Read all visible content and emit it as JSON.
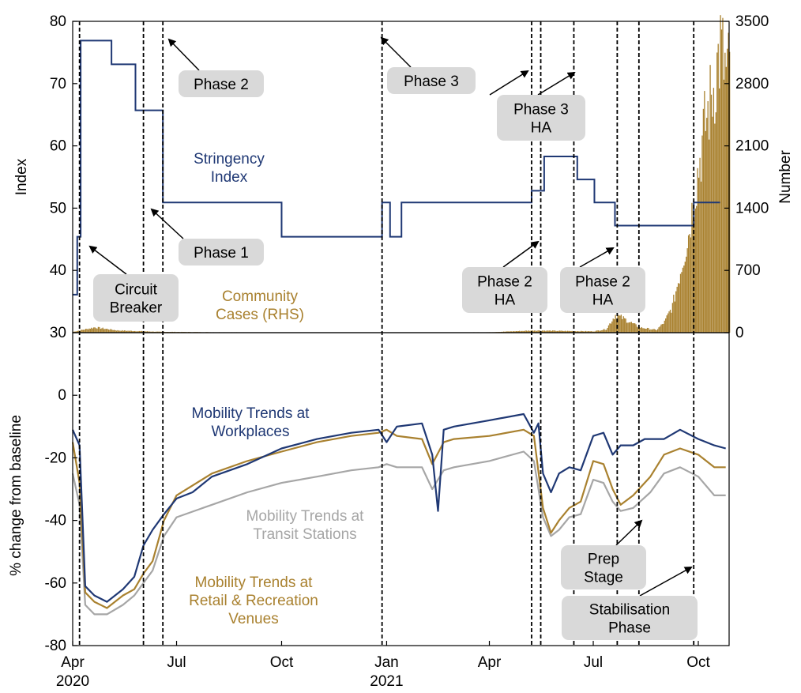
{
  "chart_data": [
    {
      "id": "top",
      "type": "line+bar",
      "ylabel": "Index",
      "y2label": "Number",
      "ylim": [
        30,
        80
      ],
      "yticks": [
        30,
        40,
        50,
        60,
        70,
        80
      ],
      "y2lim": [
        0,
        3500
      ],
      "y2ticks": [
        0,
        700,
        1400,
        2100,
        2800,
        3500
      ],
      "series": [
        {
          "name": "Stringency Index",
          "color": "#1f3874",
          "x": [
            "2020-04-01",
            "2020-04-05",
            "2020-04-07",
            "2020-04-08",
            "2020-05-05",
            "2020-05-19",
            "2020-05-26",
            "2020-06-02",
            "2020-06-19",
            "2020-10-01",
            "2020-12-28",
            "2021-01-04",
            "2021-01-14",
            "2021-05-08",
            "2021-05-15",
            "2021-05-19",
            "2021-06-17",
            "2021-06-25",
            "2021-07-02",
            "2021-07-20",
            "2021-08-10",
            "2021-09-27",
            "2021-10-20"
          ],
          "values": [
            36.1,
            45.4,
            45.4,
            76.9,
            73.1,
            73.1,
            65.7,
            65.7,
            50.9,
            45.4,
            50.9,
            45.4,
            50.9,
            52.8,
            52.8,
            58.3,
            54.6,
            54.6,
            50.9,
            47.2,
            47.2,
            50.9,
            50.9
          ]
        },
        {
          "name": "Community Cases (RHS)",
          "color": "#a9812f",
          "axis": "right",
          "x": [
            "2020-04-01",
            "2020-04-20",
            "2020-05-10",
            "2020-06-15",
            "2020-08-01",
            "2020-10-01",
            "2020-12-01",
            "2021-02-01",
            "2021-04-01",
            "2021-05-10",
            "2021-06-01",
            "2021-07-01",
            "2021-07-12",
            "2021-07-20",
            "2021-07-27",
            "2021-08-10",
            "2021-08-25",
            "2021-09-01",
            "2021-09-08",
            "2021-09-15",
            "2021-09-22",
            "2021-09-29",
            "2021-10-06",
            "2021-10-13",
            "2021-10-20",
            "2021-10-25"
          ],
          "values": [
            10,
            60,
            25,
            10,
            5,
            3,
            2,
            2,
            5,
            25,
            20,
            15,
            40,
            200,
            160,
            60,
            30,
            120,
            300,
            700,
            1100,
            1700,
            2300,
            2700,
            3200,
            2900
          ]
        }
      ],
      "annotations": [
        {
          "id": "circuit-breaker",
          "lines": [
            "Circuit",
            "Breaker"
          ]
        },
        {
          "id": "phase-1",
          "lines": [
            "Phase 1"
          ]
        },
        {
          "id": "phase-2",
          "lines": [
            "Phase 2"
          ]
        },
        {
          "id": "phase-3",
          "lines": [
            "Phase 3"
          ]
        },
        {
          "id": "phase-3-ha",
          "lines": [
            "Phase 3",
            "HA"
          ]
        },
        {
          "id": "phase-2-ha-a",
          "lines": [
            "Phase 2",
            "HA"
          ]
        },
        {
          "id": "phase-2-ha-b",
          "lines": [
            "Phase 2",
            "HA"
          ]
        }
      ],
      "series_labels": [
        {
          "id": "stringency",
          "lines": [
            "Stringency",
            "Index"
          ],
          "color": "#1f3874"
        },
        {
          "id": "cases",
          "lines": [
            "Community",
            "Cases (RHS)"
          ],
          "color": "#a9812f"
        }
      ]
    },
    {
      "id": "bottom",
      "type": "line",
      "ylabel": "% change from baseline",
      "ylim": [
        -80,
        20
      ],
      "yticks": [
        -80,
        -60,
        -40,
        -20,
        0
      ],
      "series": [
        {
          "name": "Mobility Trends at Workplaces",
          "color": "#1f3874",
          "x": [
            "2020-04-01",
            "2020-04-07",
            "2020-04-12",
            "2020-04-20",
            "2020-05-01",
            "2020-05-15",
            "2020-05-25",
            "2020-06-02",
            "2020-06-10",
            "2020-06-20",
            "2020-07-01",
            "2020-07-15",
            "2020-08-01",
            "2020-09-01",
            "2020-10-01",
            "2020-11-01",
            "2020-12-01",
            "2020-12-25",
            "2021-01-01",
            "2021-01-10",
            "2021-02-01",
            "2021-02-10",
            "2021-02-15",
            "2021-02-20",
            "2021-03-01",
            "2021-04-01",
            "2021-05-01",
            "2021-05-10",
            "2021-05-14",
            "2021-05-18",
            "2021-05-25",
            "2021-06-01",
            "2021-06-10",
            "2021-06-20",
            "2021-07-01",
            "2021-07-10",
            "2021-07-18",
            "2021-07-25",
            "2021-08-05",
            "2021-08-15",
            "2021-09-01",
            "2021-09-15",
            "2021-10-01",
            "2021-10-15",
            "2021-10-25"
          ],
          "values": [
            -11,
            -16,
            -61,
            -64,
            -66,
            -62,
            -58,
            -48,
            -43,
            -38,
            -33,
            -31,
            -26,
            -22,
            -17,
            -14,
            -12,
            -11,
            -15,
            -10,
            -9,
            -19,
            -37,
            -11,
            -10,
            -8,
            -6,
            -12,
            -9,
            -25,
            -31,
            -25,
            -23,
            -24,
            -13,
            -12,
            -19,
            -16,
            -16,
            -14,
            -14,
            -11,
            -14,
            -16,
            -17
          ]
        },
        {
          "name": "Mobility Trends at Retail & Recreation Venues",
          "color": "#a9812f",
          "x": [
            "2020-04-01",
            "2020-04-07",
            "2020-04-12",
            "2020-04-20",
            "2020-05-01",
            "2020-05-15",
            "2020-05-25",
            "2020-06-02",
            "2020-06-10",
            "2020-06-20",
            "2020-07-01",
            "2020-08-01",
            "2020-09-01",
            "2020-10-01",
            "2020-11-01",
            "2020-12-01",
            "2020-12-25",
            "2021-01-01",
            "2021-01-10",
            "2021-02-01",
            "2021-02-10",
            "2021-02-20",
            "2021-03-01",
            "2021-04-01",
            "2021-05-01",
            "2021-05-10",
            "2021-05-18",
            "2021-05-25",
            "2021-06-01",
            "2021-06-10",
            "2021-06-20",
            "2021-07-01",
            "2021-07-10",
            "2021-07-18",
            "2021-07-25",
            "2021-08-05",
            "2021-08-20",
            "2021-09-01",
            "2021-09-15",
            "2021-10-01",
            "2021-10-15",
            "2021-10-25"
          ],
          "values": [
            -15,
            -28,
            -63,
            -66,
            -68,
            -64,
            -62,
            -57,
            -53,
            -40,
            -32,
            -25,
            -21,
            -18,
            -15,
            -13,
            -12,
            -11,
            -13,
            -14,
            -22,
            -15,
            -14,
            -13,
            -11,
            -13,
            -36,
            -44,
            -40,
            -36,
            -34,
            -21,
            -22,
            -30,
            -35,
            -32,
            -26,
            -19,
            -17,
            -19,
            -23,
            -23
          ]
        },
        {
          "name": "Mobility Trends at Transit Stations",
          "color": "#a6a6a6",
          "x": [
            "2020-04-01",
            "2020-04-07",
            "2020-04-12",
            "2020-04-20",
            "2020-05-01",
            "2020-05-15",
            "2020-05-25",
            "2020-06-02",
            "2020-06-10",
            "2020-06-20",
            "2020-07-01",
            "2020-08-01",
            "2020-09-01",
            "2020-10-01",
            "2020-11-01",
            "2020-12-01",
            "2020-12-25",
            "2021-01-01",
            "2021-01-10",
            "2021-02-01",
            "2021-02-10",
            "2021-02-20",
            "2021-03-01",
            "2021-04-01",
            "2021-05-01",
            "2021-05-10",
            "2021-05-18",
            "2021-05-25",
            "2021-06-01",
            "2021-06-10",
            "2021-06-20",
            "2021-07-01",
            "2021-07-10",
            "2021-07-18",
            "2021-07-25",
            "2021-08-05",
            "2021-08-20",
            "2021-09-01",
            "2021-09-15",
            "2021-10-01",
            "2021-10-15",
            "2021-10-25"
          ],
          "values": [
            -25,
            -35,
            -67,
            -70,
            -70,
            -67,
            -64,
            -60,
            -56,
            -45,
            -39,
            -35,
            -31,
            -28,
            -26,
            -24,
            -23,
            -22,
            -23,
            -23,
            -30,
            -24,
            -23,
            -21,
            -18,
            -21,
            -39,
            -45,
            -43,
            -39,
            -38,
            -27,
            -28,
            -34,
            -37,
            -36,
            -31,
            -25,
            -23,
            -26,
            -32,
            -32
          ]
        }
      ],
      "annotations": [
        {
          "id": "prep-stage",
          "lines": [
            "Prep",
            "Stage"
          ]
        },
        {
          "id": "stabilisation-phase",
          "lines": [
            "Stabilisation",
            "Phase"
          ]
        }
      ],
      "series_labels": [
        {
          "id": "workplaces",
          "lines": [
            "Mobility Trends at",
            "Workplaces"
          ],
          "color": "#1f3874"
        },
        {
          "id": "transit",
          "lines": [
            "Mobility Trends at",
            "Transit Stations"
          ],
          "color": "#a6a6a6"
        },
        {
          "id": "retail",
          "lines": [
            "Mobility Trends at",
            "Retail & Recreation",
            "Venues"
          ],
          "color": "#a9812f"
        }
      ]
    }
  ],
  "x_axis": {
    "ticks": [
      {
        "date": "2020-04-01",
        "label": "Apr",
        "year": "2020"
      },
      {
        "date": "2020-07-01",
        "label": "Jul",
        "year": ""
      },
      {
        "date": "2020-10-01",
        "label": "Oct",
        "year": ""
      },
      {
        "date": "2021-01-01",
        "label": "Jan",
        "year": "2021"
      },
      {
        "date": "2021-04-01",
        "label": "Apr",
        "year": ""
      },
      {
        "date": "2021-07-01",
        "label": "Jul",
        "year": ""
      },
      {
        "date": "2021-10-01",
        "label": "Oct",
        "year": ""
      }
    ]
  },
  "phase_dates": [
    "2020-04-07",
    "2020-06-02",
    "2020-06-19",
    "2020-12-28",
    "2021-05-08",
    "2021-05-16",
    "2021-06-14",
    "2021-07-22",
    "2021-08-10",
    "2021-09-27"
  ]
}
